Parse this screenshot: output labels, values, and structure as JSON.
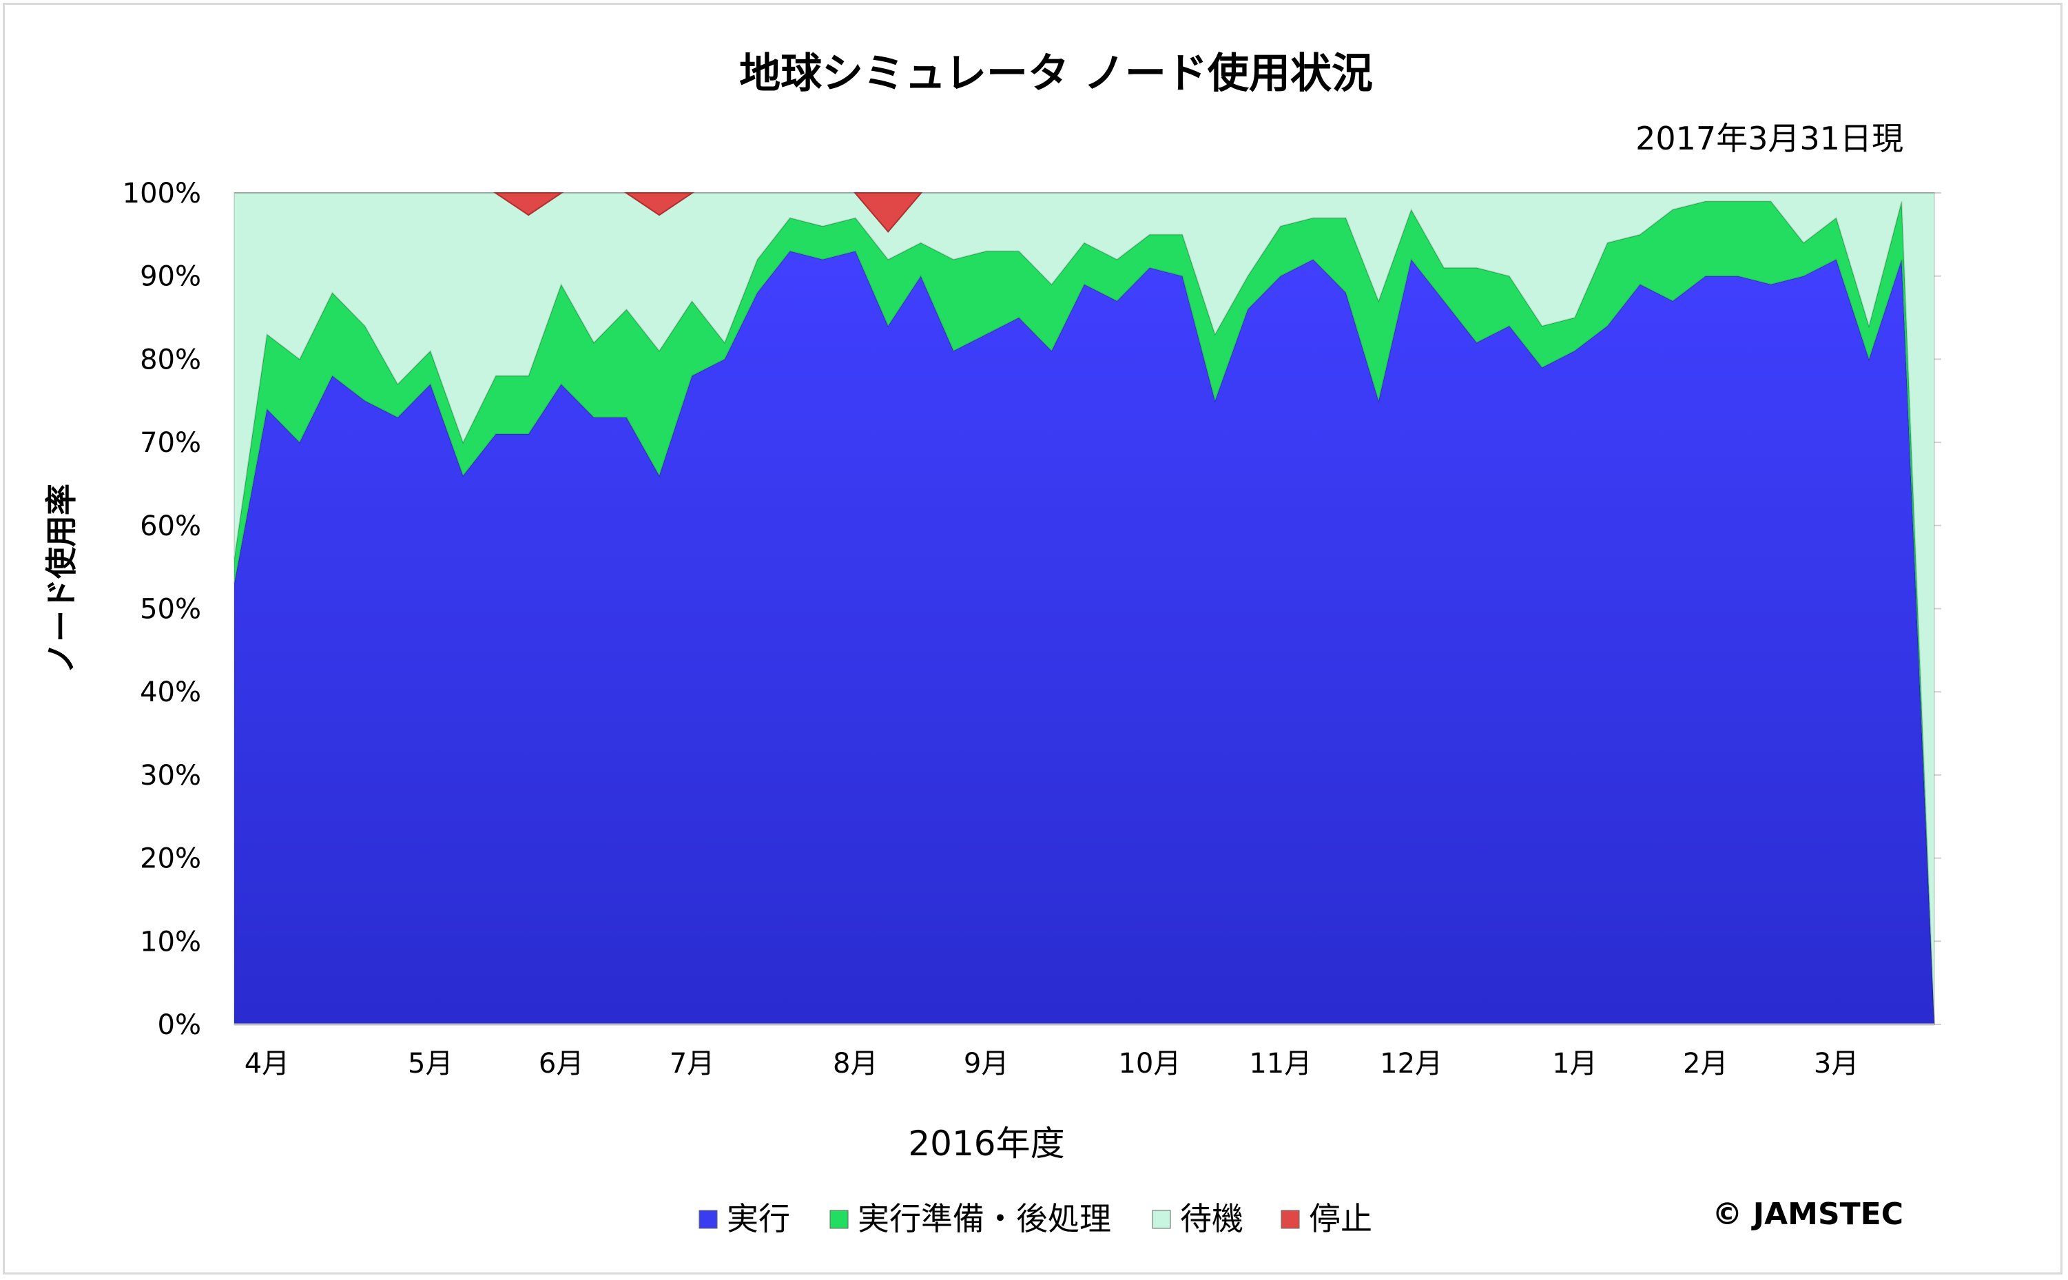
{
  "chart_data": {
    "type": "area",
    "stacked": true,
    "title": "地球シミュレータ ノード使用状況",
    "subtitle": "2017年3月31日現",
    "xlabel": "2016年度",
    "ylabel": "ノード使用率",
    "ylim": [
      0,
      100
    ],
    "y_ticks": [
      "0%",
      "10%",
      "20%",
      "30%",
      "40%",
      "50%",
      "60%",
      "70%",
      "80%",
      "90%",
      "100%"
    ],
    "x_tick_labels": [
      {
        "label": "4月",
        "week": 1
      },
      {
        "label": "5月",
        "week": 6
      },
      {
        "label": "6月",
        "week": 10
      },
      {
        "label": "7月",
        "week": 14
      },
      {
        "label": "8月",
        "week": 19
      },
      {
        "label": "9月",
        "week": 23
      },
      {
        "label": "10月",
        "week": 28
      },
      {
        "label": "11月",
        "week": 32
      },
      {
        "label": "12月",
        "week": 36
      },
      {
        "label": "1月",
        "week": 41
      },
      {
        "label": "2月",
        "week": 45
      },
      {
        "label": "3月",
        "week": 49
      }
    ],
    "weeks": [
      0,
      1,
      2,
      3,
      4,
      5,
      6,
      7,
      8,
      9,
      10,
      11,
      12,
      13,
      14,
      15,
      16,
      17,
      18,
      19,
      20,
      21,
      22,
      23,
      24,
      25,
      26,
      27,
      28,
      29,
      30,
      31,
      32,
      33,
      34,
      35,
      36,
      37,
      38,
      39,
      40,
      41,
      42,
      43,
      44,
      45,
      46,
      47,
      48,
      49,
      50,
      51,
      52
    ],
    "series": [
      {
        "name": "実行",
        "color": "#3a3cf0",
        "values": [
          53,
          74,
          70,
          78,
          75,
          73,
          77,
          66,
          71,
          71,
          77,
          73,
          73,
          66,
          78,
          80,
          88,
          93,
          92,
          93,
          84,
          90,
          81,
          83,
          85,
          81,
          89,
          87,
          91,
          90,
          75,
          86,
          90,
          92,
          88,
          75,
          92,
          87,
          82,
          84,
          79,
          81,
          84,
          89,
          87,
          90,
          90,
          89,
          90,
          92,
          80,
          92,
          0
        ]
      },
      {
        "name": "実行準備・後処理",
        "color": "#22dd5f",
        "values": [
          3,
          9,
          10,
          10,
          9,
          4,
          4,
          4,
          7,
          7,
          12,
          9,
          13,
          15,
          9,
          2,
          4,
          4,
          4,
          4,
          8,
          4,
          11,
          10,
          8,
          8,
          5,
          5,
          4,
          5,
          8,
          4,
          6,
          5,
          9,
          12,
          6,
          4,
          9,
          6,
          5,
          4,
          10,
          6,
          11,
          9,
          9,
          10,
          4,
          5,
          4,
          7,
          0
        ]
      },
      {
        "name": "待機",
        "color": "#c8f5e0",
        "values": [
          44,
          17,
          20,
          12,
          16,
          23,
          19,
          30,
          22,
          22,
          11,
          18,
          14,
          19,
          13,
          18,
          8,
          3,
          4,
          3,
          8,
          6,
          8,
          7,
          7,
          11,
          6,
          8,
          5,
          5,
          17,
          10,
          4,
          3,
          3,
          13,
          2,
          9,
          9,
          10,
          16,
          15,
          6,
          5,
          2,
          1,
          1,
          1,
          6,
          3,
          16,
          1,
          100
        ]
      },
      {
        "name": "停止",
        "color": "#e04848",
        "values": [
          0,
          0,
          0,
          0,
          0,
          0,
          0,
          0,
          0,
          0,
          0,
          0,
          0,
          0,
          0,
          0,
          0,
          0,
          0,
          0,
          0,
          0,
          0,
          0,
          0,
          0,
          0,
          0,
          0,
          0,
          0,
          0,
          0,
          0,
          0,
          0,
          0,
          0,
          0,
          0,
          0,
          0,
          0,
          0,
          0,
          0,
          0,
          0,
          0,
          0,
          0,
          0,
          0
        ]
      }
    ],
    "stop_events": [
      {
        "week": 9,
        "value": 2
      },
      {
        "week": 13,
        "value": 2
      },
      {
        "week": 20,
        "value": 4
      }
    ],
    "legend_position": "bottom",
    "grid": true
  },
  "copyright": "© JAMSTEC"
}
